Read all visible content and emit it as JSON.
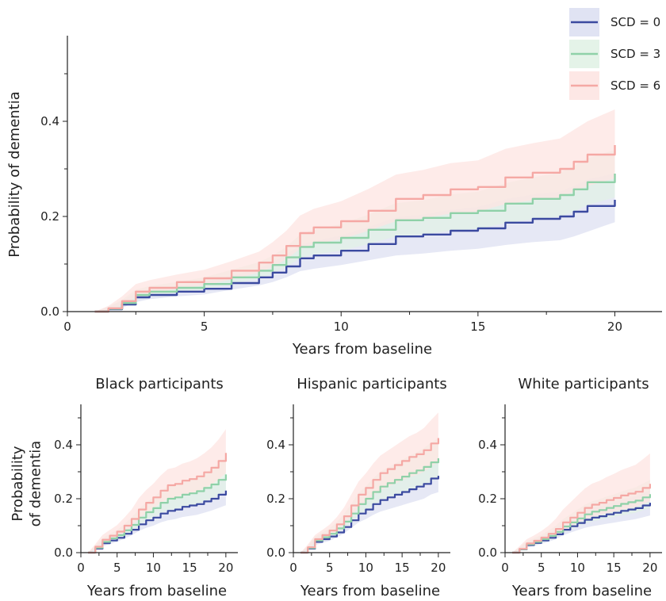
{
  "legend": {
    "items": [
      {
        "label": "SCD = 0",
        "color": "#3b4aa0",
        "band": "#dde0f2"
      },
      {
        "label": "SCD = 3",
        "color": "#8fd1a8",
        "band": "#e1f2e6"
      },
      {
        "label": "SCD = 6",
        "color": "#f5a8a4",
        "band": "#fde4e2"
      }
    ]
  },
  "chart_data": [
    {
      "type": "line",
      "title": "",
      "xlabel": "Years from baseline",
      "ylabel": "Probability of dementia",
      "xlim": [
        0,
        21
      ],
      "ylim": [
        0,
        0.58
      ],
      "xticks": [
        0,
        5,
        10,
        15,
        20
      ],
      "yticks": [
        0.0,
        0.2,
        0.4
      ],
      "x": [
        1,
        1.5,
        2,
        2.5,
        3,
        4,
        5,
        6,
        7,
        7.5,
        8,
        8.5,
        9,
        10,
        11,
        12,
        13,
        14,
        15,
        16,
        17,
        18,
        18.5,
        19,
        20
      ],
      "series": [
        {
          "name": "SCD = 0",
          "values": [
            0,
            0.005,
            0.015,
            0.03,
            0.035,
            0.042,
            0.048,
            0.06,
            0.072,
            0.082,
            0.095,
            0.112,
            0.118,
            0.128,
            0.142,
            0.158,
            0.162,
            0.17,
            0.175,
            0.187,
            0.195,
            0.2,
            0.21,
            0.222,
            0.235
          ],
          "lower": [
            0,
            0.002,
            0.008,
            0.02,
            0.026,
            0.032,
            0.036,
            0.046,
            0.055,
            0.062,
            0.072,
            0.085,
            0.09,
            0.098,
            0.108,
            0.118,
            0.122,
            0.128,
            0.132,
            0.14,
            0.146,
            0.15,
            0.158,
            0.168,
            0.188
          ],
          "upper": [
            0,
            0.01,
            0.022,
            0.04,
            0.046,
            0.054,
            0.062,
            0.076,
            0.09,
            0.104,
            0.12,
            0.14,
            0.148,
            0.16,
            0.178,
            0.198,
            0.204,
            0.214,
            0.22,
            0.236,
            0.246,
            0.252,
            0.264,
            0.278,
            0.29
          ]
        },
        {
          "name": "SCD = 3",
          "values": [
            0,
            0.006,
            0.018,
            0.035,
            0.042,
            0.05,
            0.058,
            0.072,
            0.086,
            0.098,
            0.114,
            0.136,
            0.145,
            0.155,
            0.172,
            0.192,
            0.197,
            0.207,
            0.212,
            0.227,
            0.237,
            0.245,
            0.257,
            0.272,
            0.29
          ],
          "lower": [
            0,
            0.003,
            0.011,
            0.026,
            0.032,
            0.04,
            0.046,
            0.058,
            0.07,
            0.08,
            0.094,
            0.112,
            0.12,
            0.128,
            0.142,
            0.158,
            0.162,
            0.17,
            0.174,
            0.186,
            0.194,
            0.2,
            0.21,
            0.224,
            0.24
          ],
          "upper": [
            0,
            0.01,
            0.025,
            0.046,
            0.054,
            0.062,
            0.072,
            0.088,
            0.104,
            0.118,
            0.136,
            0.162,
            0.172,
            0.184,
            0.204,
            0.228,
            0.234,
            0.246,
            0.252,
            0.27,
            0.282,
            0.292,
            0.306,
            0.322,
            0.34
          ]
        },
        {
          "name": "SCD = 6",
          "values": [
            0,
            0.007,
            0.022,
            0.042,
            0.05,
            0.062,
            0.07,
            0.086,
            0.103,
            0.118,
            0.138,
            0.165,
            0.177,
            0.19,
            0.212,
            0.237,
            0.245,
            0.257,
            0.262,
            0.282,
            0.292,
            0.3,
            0.315,
            0.33,
            0.35
          ],
          "lower": [
            0,
            0.004,
            0.013,
            0.03,
            0.038,
            0.048,
            0.055,
            0.068,
            0.082,
            0.094,
            0.11,
            0.132,
            0.142,
            0.152,
            0.17,
            0.19,
            0.196,
            0.206,
            0.21,
            0.226,
            0.234,
            0.24,
            0.252,
            0.264,
            0.28
          ],
          "upper": [
            0,
            0.012,
            0.032,
            0.058,
            0.066,
            0.078,
            0.088,
            0.106,
            0.126,
            0.146,
            0.17,
            0.202,
            0.216,
            0.232,
            0.258,
            0.288,
            0.298,
            0.312,
            0.318,
            0.342,
            0.354,
            0.364,
            0.382,
            0.4,
            0.425
          ]
        }
      ]
    },
    {
      "type": "line",
      "title": "Black participants",
      "xlabel": "Years from baseline",
      "ylabel": "Probability\nof dementia",
      "xlim": [
        0,
        21
      ],
      "ylim": [
        0,
        0.55
      ],
      "xticks": [
        0,
        5,
        10,
        15,
        20
      ],
      "yticks": [
        0.0,
        0.2,
        0.4
      ],
      "x": [
        1,
        2,
        3,
        4,
        5,
        6,
        7,
        8,
        9,
        10,
        11,
        12,
        13,
        14,
        15,
        16,
        17,
        18,
        19,
        20
      ],
      "series": [
        {
          "name": "SCD = 0",
          "values": [
            0,
            0.015,
            0.035,
            0.045,
            0.055,
            0.07,
            0.085,
            0.105,
            0.12,
            0.13,
            0.145,
            0.155,
            0.16,
            0.17,
            0.175,
            0.18,
            0.19,
            0.2,
            0.215,
            0.23
          ],
          "lower": [
            0,
            0.008,
            0.024,
            0.032,
            0.04,
            0.052,
            0.064,
            0.08,
            0.092,
            0.1,
            0.112,
            0.12,
            0.124,
            0.132,
            0.136,
            0.14,
            0.148,
            0.156,
            0.166,
            0.176
          ],
          "upper": [
            0,
            0.022,
            0.048,
            0.06,
            0.072,
            0.09,
            0.108,
            0.132,
            0.15,
            0.162,
            0.18,
            0.192,
            0.198,
            0.21,
            0.216,
            0.222,
            0.234,
            0.246,
            0.264,
            0.284
          ]
        },
        {
          "name": "SCD = 3",
          "values": [
            0,
            0.018,
            0.04,
            0.053,
            0.065,
            0.083,
            0.103,
            0.13,
            0.15,
            0.165,
            0.185,
            0.2,
            0.205,
            0.215,
            0.22,
            0.228,
            0.24,
            0.253,
            0.27,
            0.29
          ],
          "lower": [
            0,
            0.01,
            0.028,
            0.038,
            0.048,
            0.063,
            0.08,
            0.102,
            0.118,
            0.13,
            0.146,
            0.158,
            0.162,
            0.17,
            0.174,
            0.18,
            0.19,
            0.2,
            0.214,
            0.23
          ],
          "upper": [
            0,
            0.026,
            0.054,
            0.07,
            0.084,
            0.106,
            0.13,
            0.162,
            0.186,
            0.204,
            0.228,
            0.246,
            0.252,
            0.264,
            0.27,
            0.28,
            0.294,
            0.31,
            0.33,
            0.355
          ]
        },
        {
          "name": "SCD = 6",
          "values": [
            0,
            0.022,
            0.048,
            0.063,
            0.078,
            0.1,
            0.125,
            0.16,
            0.185,
            0.205,
            0.23,
            0.25,
            0.255,
            0.267,
            0.273,
            0.283,
            0.298,
            0.315,
            0.34,
            0.37
          ],
          "lower": [
            0,
            0.012,
            0.033,
            0.046,
            0.058,
            0.076,
            0.097,
            0.126,
            0.146,
            0.163,
            0.184,
            0.2,
            0.204,
            0.214,
            0.219,
            0.227,
            0.239,
            0.252,
            0.272,
            0.295
          ],
          "upper": [
            0,
            0.032,
            0.066,
            0.084,
            0.102,
            0.13,
            0.16,
            0.202,
            0.232,
            0.256,
            0.286,
            0.31,
            0.316,
            0.33,
            0.338,
            0.35,
            0.368,
            0.39,
            0.42,
            0.458
          ]
        }
      ]
    },
    {
      "type": "line",
      "title": "Hispanic participants",
      "xlabel": "Years from baseline",
      "ylabel": "",
      "xlim": [
        0,
        21
      ],
      "ylim": [
        0,
        0.55
      ],
      "xticks": [
        0,
        5,
        10,
        15,
        20
      ],
      "yticks": [
        0.0,
        0.2,
        0.4
      ],
      "x": [
        1,
        2,
        3,
        4,
        5,
        6,
        7,
        8,
        9,
        10,
        11,
        12,
        13,
        14,
        15,
        16,
        17,
        18,
        19,
        20
      ],
      "series": [
        {
          "name": "SCD = 0",
          "values": [
            0,
            0.015,
            0.04,
            0.05,
            0.06,
            0.075,
            0.095,
            0.12,
            0.145,
            0.16,
            0.18,
            0.195,
            0.205,
            0.215,
            0.225,
            0.235,
            0.245,
            0.255,
            0.275,
            0.285
          ],
          "lower": [
            0,
            0.008,
            0.028,
            0.036,
            0.044,
            0.056,
            0.072,
            0.092,
            0.112,
            0.124,
            0.14,
            0.152,
            0.16,
            0.168,
            0.176,
            0.184,
            0.192,
            0.2,
            0.216,
            0.224
          ],
          "upper": [
            0,
            0.022,
            0.054,
            0.066,
            0.078,
            0.096,
            0.12,
            0.15,
            0.18,
            0.198,
            0.222,
            0.24,
            0.252,
            0.264,
            0.276,
            0.288,
            0.3,
            0.312,
            0.336,
            0.35
          ]
        },
        {
          "name": "SCD = 3",
          "values": [
            0,
            0.017,
            0.045,
            0.057,
            0.07,
            0.09,
            0.115,
            0.145,
            0.18,
            0.2,
            0.225,
            0.245,
            0.258,
            0.27,
            0.282,
            0.295,
            0.305,
            0.318,
            0.335,
            0.35
          ],
          "lower": [
            0,
            0.009,
            0.032,
            0.042,
            0.052,
            0.068,
            0.088,
            0.112,
            0.14,
            0.156,
            0.176,
            0.192,
            0.202,
            0.212,
            0.222,
            0.232,
            0.24,
            0.25,
            0.264,
            0.276
          ],
          "upper": [
            0,
            0.025,
            0.06,
            0.074,
            0.09,
            0.114,
            0.144,
            0.18,
            0.222,
            0.246,
            0.276,
            0.3,
            0.316,
            0.33,
            0.344,
            0.36,
            0.372,
            0.388,
            0.408,
            0.425
          ]
        },
        {
          "name": "SCD = 6",
          "values": [
            0,
            0.02,
            0.05,
            0.065,
            0.082,
            0.105,
            0.135,
            0.175,
            0.215,
            0.24,
            0.27,
            0.295,
            0.31,
            0.325,
            0.34,
            0.355,
            0.365,
            0.38,
            0.405,
            0.425
          ],
          "lower": [
            0,
            0.011,
            0.036,
            0.048,
            0.062,
            0.08,
            0.104,
            0.136,
            0.168,
            0.188,
            0.212,
            0.232,
            0.244,
            0.256,
            0.268,
            0.28,
            0.288,
            0.3,
            0.32,
            0.336
          ],
          "upper": [
            0,
            0.03,
            0.066,
            0.084,
            0.104,
            0.132,
            0.168,
            0.216,
            0.264,
            0.294,
            0.33,
            0.36,
            0.378,
            0.396,
            0.414,
            0.432,
            0.444,
            0.462,
            0.492,
            0.52
          ]
        }
      ]
    },
    {
      "type": "line",
      "title": "White participants",
      "xlabel": "Years from baseline",
      "ylabel": "",
      "xlim": [
        0,
        21
      ],
      "ylim": [
        0,
        0.55
      ],
      "xticks": [
        0,
        5,
        10,
        15,
        20
      ],
      "yticks": [
        0.0,
        0.2,
        0.4
      ],
      "x": [
        1,
        2,
        3,
        4,
        5,
        6,
        7,
        8,
        9,
        10,
        11,
        12,
        13,
        14,
        15,
        16,
        17,
        18,
        19,
        20
      ],
      "series": [
        {
          "name": "SCD = 0",
          "values": [
            0,
            0.012,
            0.028,
            0.036,
            0.045,
            0.055,
            0.068,
            0.085,
            0.098,
            0.11,
            0.122,
            0.13,
            0.135,
            0.142,
            0.148,
            0.155,
            0.16,
            0.165,
            0.175,
            0.185
          ],
          "lower": [
            0,
            0.006,
            0.019,
            0.025,
            0.032,
            0.04,
            0.05,
            0.064,
            0.074,
            0.083,
            0.092,
            0.098,
            0.102,
            0.107,
            0.111,
            0.116,
            0.12,
            0.124,
            0.131,
            0.138
          ],
          "upper": [
            0,
            0.018,
            0.038,
            0.048,
            0.06,
            0.072,
            0.088,
            0.11,
            0.126,
            0.14,
            0.156,
            0.166,
            0.172,
            0.18,
            0.188,
            0.196,
            0.202,
            0.208,
            0.22,
            0.232
          ]
        },
        {
          "name": "SCD = 3",
          "values": [
            0,
            0.013,
            0.031,
            0.04,
            0.05,
            0.062,
            0.077,
            0.097,
            0.112,
            0.127,
            0.142,
            0.152,
            0.158,
            0.166,
            0.173,
            0.181,
            0.187,
            0.193,
            0.205,
            0.217
          ],
          "lower": [
            0,
            0.007,
            0.021,
            0.028,
            0.036,
            0.045,
            0.057,
            0.073,
            0.085,
            0.097,
            0.108,
            0.116,
            0.121,
            0.127,
            0.132,
            0.138,
            0.143,
            0.148,
            0.157,
            0.166
          ],
          "upper": [
            0,
            0.02,
            0.042,
            0.054,
            0.066,
            0.082,
            0.1,
            0.124,
            0.142,
            0.16,
            0.178,
            0.19,
            0.198,
            0.208,
            0.216,
            0.226,
            0.234,
            0.242,
            0.256,
            0.27
          ]
        },
        {
          "name": "SCD = 6",
          "values": [
            0,
            0.014,
            0.034,
            0.044,
            0.056,
            0.07,
            0.088,
            0.112,
            0.13,
            0.148,
            0.166,
            0.178,
            0.185,
            0.195,
            0.203,
            0.212,
            0.219,
            0.226,
            0.24,
            0.255
          ],
          "lower": [
            0,
            0.007,
            0.023,
            0.03,
            0.039,
            0.05,
            0.063,
            0.082,
            0.096,
            0.11,
            0.124,
            0.133,
            0.139,
            0.146,
            0.152,
            0.159,
            0.164,
            0.169,
            0.18,
            0.191
          ],
          "upper": [
            0,
            0.024,
            0.05,
            0.064,
            0.08,
            0.1,
            0.126,
            0.16,
            0.186,
            0.212,
            0.238,
            0.256,
            0.266,
            0.28,
            0.292,
            0.306,
            0.316,
            0.326,
            0.346,
            0.368
          ]
        }
      ]
    }
  ]
}
